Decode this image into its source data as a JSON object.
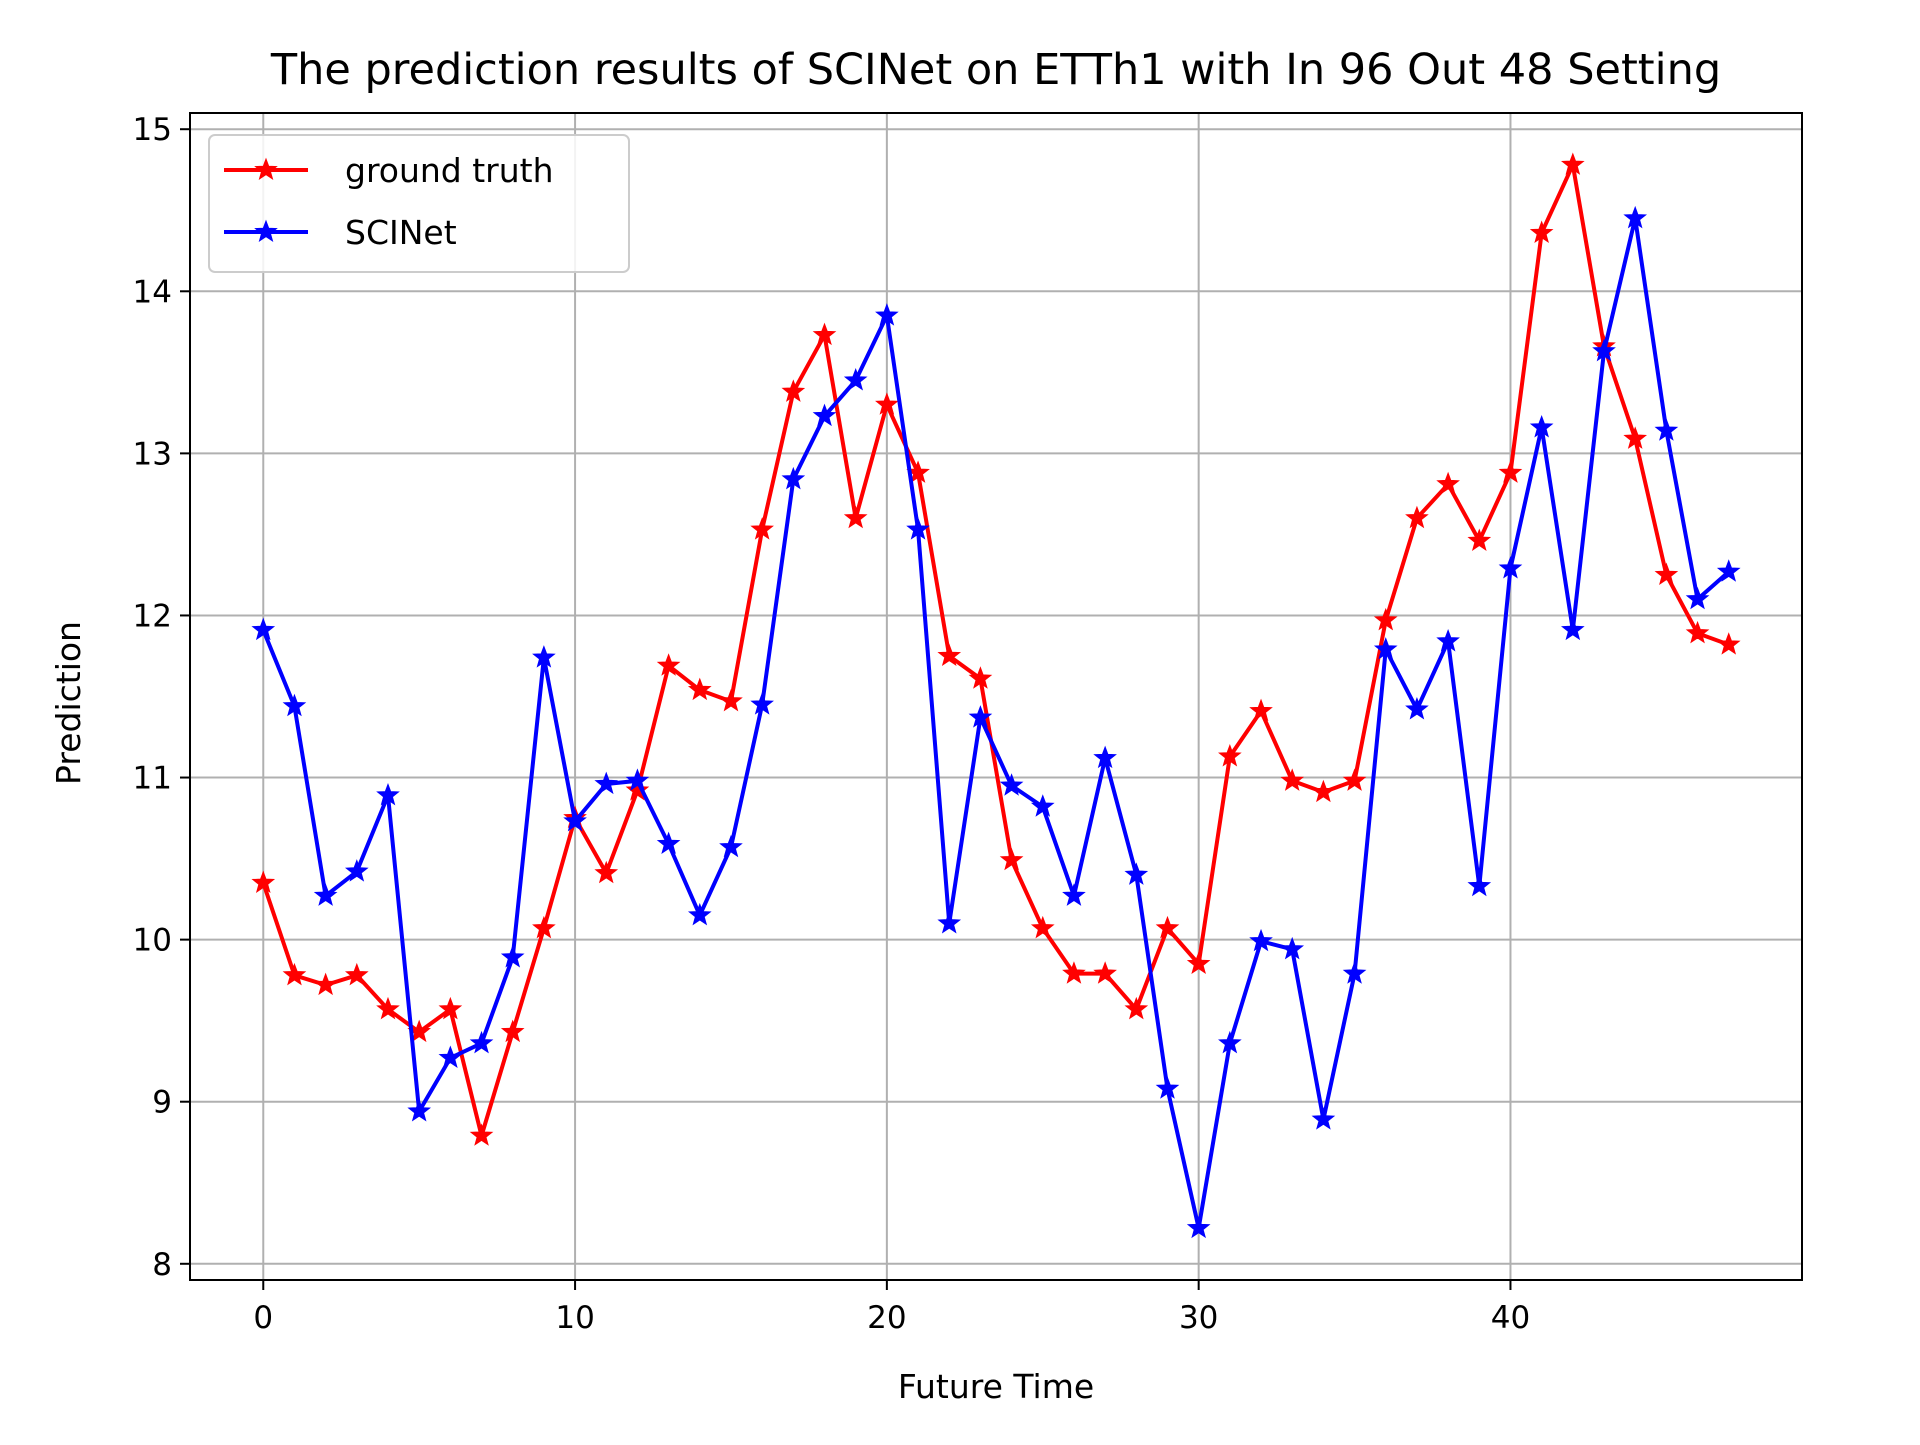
{
  "chart_data": {
    "type": "line",
    "title": "The prediction results of SCINet on ETTh1 with In 96 Out 48 Setting",
    "xlabel": "Future Time",
    "ylabel": "Prediction",
    "xlim": [
      -2.35,
      49.35
    ],
    "ylim": [
      7.9,
      15.1
    ],
    "xticks": [
      0,
      10,
      20,
      30,
      40
    ],
    "yticks": [
      8,
      9,
      10,
      11,
      12,
      13,
      14,
      15
    ],
    "grid": true,
    "legend_position": "upper-left",
    "marker": "star",
    "x": [
      0,
      1,
      2,
      3,
      4,
      5,
      6,
      7,
      8,
      9,
      10,
      11,
      12,
      13,
      14,
      15,
      16,
      17,
      18,
      19,
      20,
      21,
      22,
      23,
      24,
      25,
      26,
      27,
      28,
      29,
      30,
      31,
      32,
      33,
      34,
      35,
      36,
      37,
      38,
      39,
      40,
      41,
      42,
      43,
      44,
      45,
      46,
      47
    ],
    "series": [
      {
        "name": "ground truth",
        "color": "#ff0000",
        "values": [
          10.35,
          9.78,
          9.72,
          9.78,
          9.57,
          9.43,
          9.57,
          8.79,
          9.43,
          10.07,
          10.75,
          10.41,
          10.92,
          11.69,
          11.54,
          11.47,
          12.53,
          13.38,
          13.73,
          12.6,
          13.3,
          12.88,
          11.75,
          11.61,
          10.49,
          10.07,
          9.79,
          9.79,
          9.57,
          10.07,
          9.85,
          11.13,
          11.41,
          10.98,
          10.91,
          10.98,
          11.97,
          12.6,
          12.81,
          12.46,
          12.88,
          14.36,
          14.78,
          13.66,
          13.09,
          12.25,
          11.89,
          11.82
        ]
      },
      {
        "name": "SCINet",
        "color": "#0000ff",
        "values": [
          11.91,
          11.44,
          10.27,
          10.42,
          10.89,
          8.94,
          9.27,
          9.36,
          9.89,
          11.74,
          10.73,
          10.96,
          10.98,
          10.59,
          10.15,
          10.57,
          11.45,
          12.84,
          13.23,
          13.45,
          13.85,
          12.53,
          10.1,
          11.37,
          10.95,
          10.82,
          10.27,
          11.12,
          10.4,
          9.08,
          8.22,
          9.36,
          9.99,
          9.94,
          8.89,
          9.79,
          11.79,
          11.42,
          11.84,
          10.33,
          12.29,
          13.16,
          11.91,
          13.63,
          14.45,
          13.14,
          12.1,
          12.27
        ]
      }
    ]
  }
}
